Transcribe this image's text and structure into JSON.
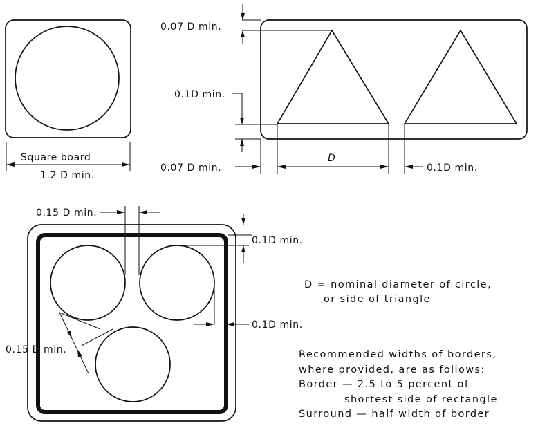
{
  "labels": {
    "square_board": "Square board",
    "square_dim": "1.2 D min.",
    "top_margin": "0.07 D min.",
    "mid_margin": "0.1D min.",
    "left_margin": "0.07 D min.",
    "triangle_side": "D",
    "gap_between": "0.1D min.",
    "bottom_gap_top": "0.15 D min.",
    "bottom_margin_right": "0.1D min.",
    "bottom_gap_right": "0.1D min.",
    "bottom_gap_diag": "0.15 D min."
  },
  "legend": {
    "definition_line1": "D = nominal diameter of circle,",
    "definition_line2": "or side of triangle"
  },
  "notes": {
    "line1": "Recommended widths of borders,",
    "line2": "where provided, are as follows:",
    "line3": "Border — 2.5 to 5 percent of",
    "line4": "shortest side of rectangle",
    "line5": "Surround — half width of border"
  }
}
